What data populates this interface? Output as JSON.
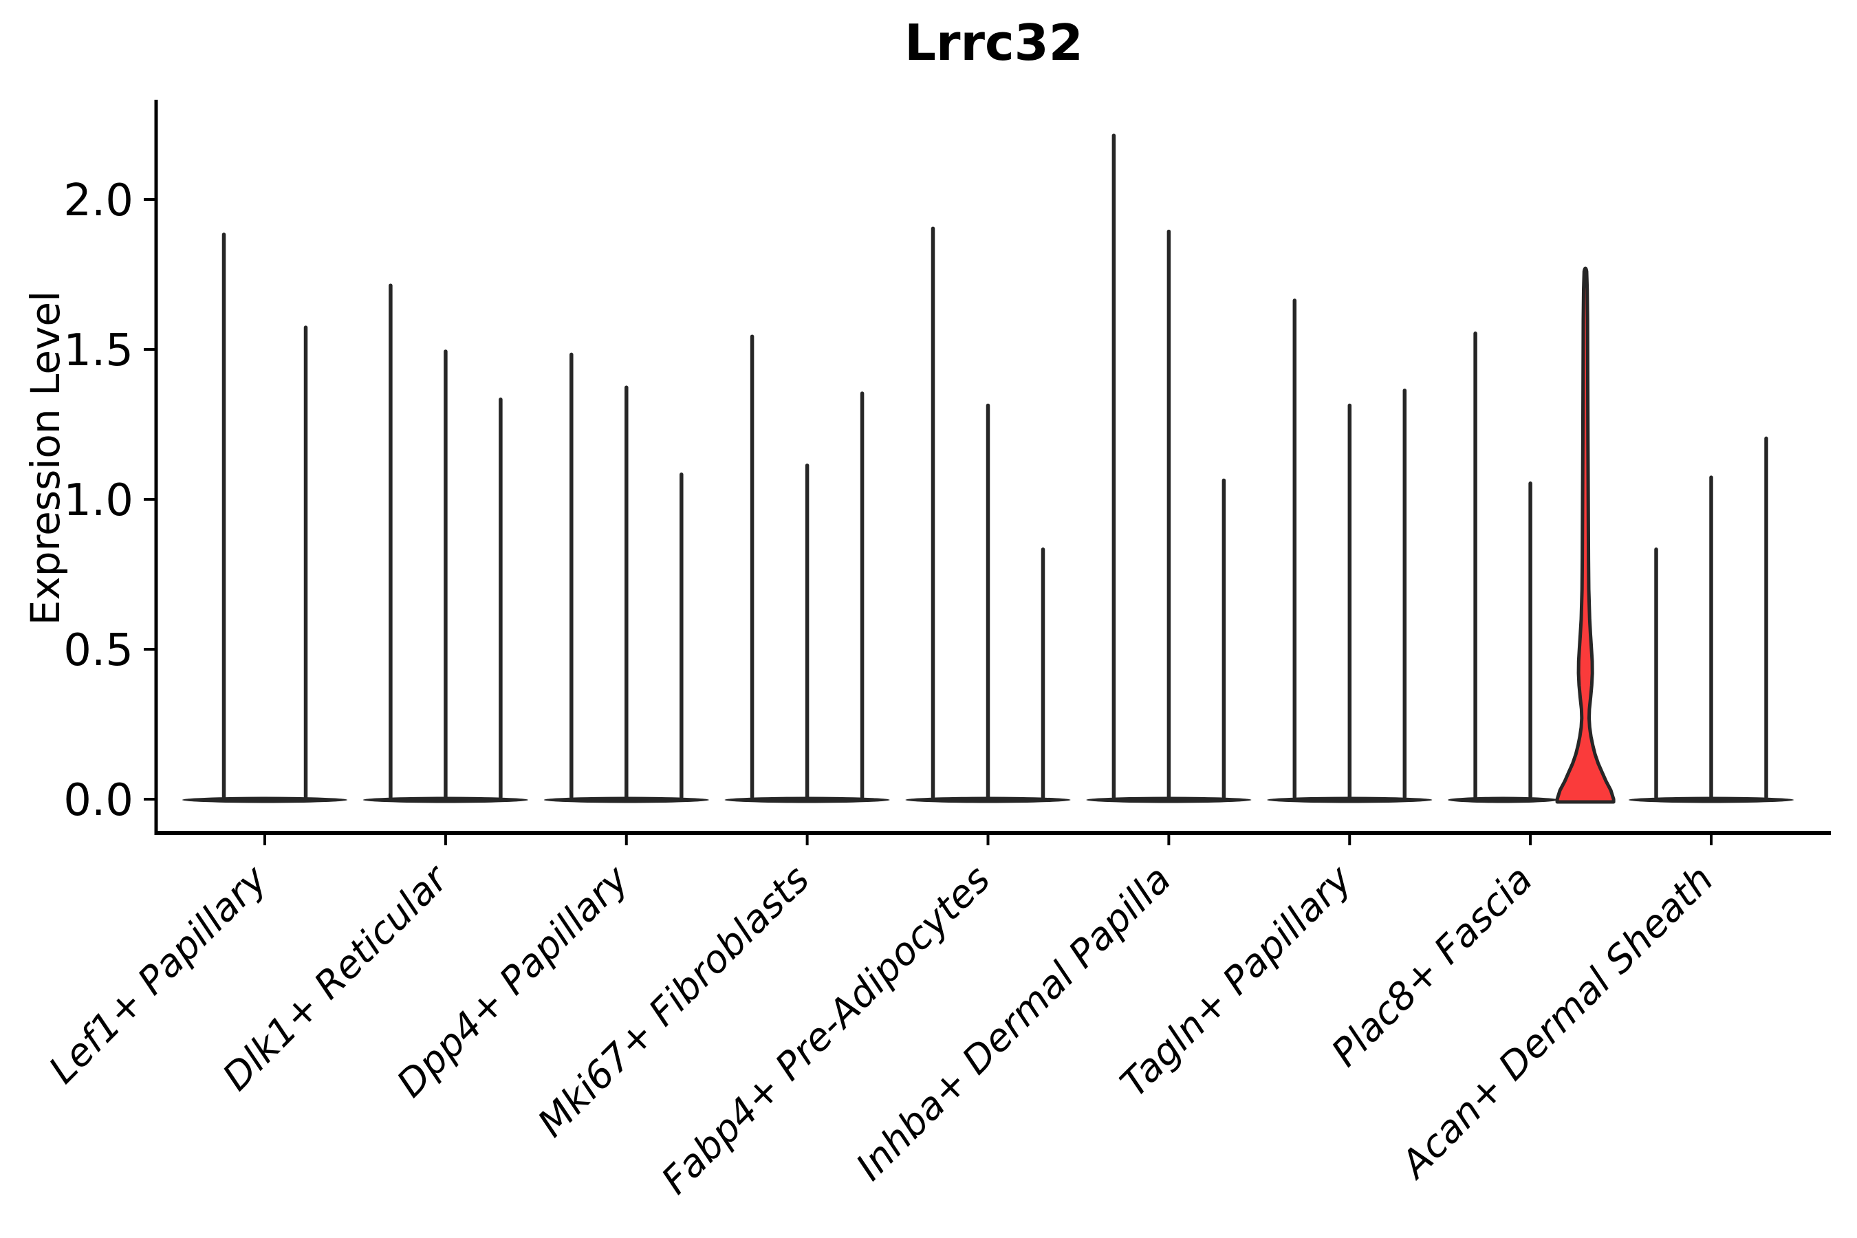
{
  "title": "Lrrc32",
  "y_axis": {
    "label": "Expression Level",
    "tick_labels": [
      "0.0",
      "0.5",
      "1.0",
      "1.5",
      "2.0"
    ],
    "tick_values": [
      0.0,
      0.5,
      1.0,
      1.5,
      2.0
    ]
  },
  "style": {
    "background": "#ffffff",
    "axis_color": "#000000",
    "violin_color": "#262626",
    "highlight_fill": "#fa3b3b",
    "text_color": "#000000"
  },
  "chart_data": {
    "type": "violin",
    "title": "Lrrc32",
    "ylabel": "Expression Level",
    "grid": false,
    "legend_position": "none",
    "ylim": [
      -0.11,
      2.33
    ],
    "yticks": [
      0.0,
      0.5,
      1.0,
      1.5,
      2.0
    ],
    "categories": [
      "Lef1+ Papillary",
      "Dlk1+ Reticular",
      "Dpp4+ Papillary",
      "Mki67+ Fibroblasts",
      "Fabp4+ Pre-Adipocytes",
      "Inhba+ Dermal Papilla",
      "Tagln+ Papillary",
      "Plac8+ Fascia",
      "Acan+ Dermal Sheath"
    ],
    "description": "Violin plot of Lrrc32 expression; nearly all violins collapse to thin spikes at 0 with long tails to their max value; one red-highlighted violin in Plac8+ Fascia shows visible density mass near 0-0.5.",
    "groups": [
      {
        "category": "Lef1+ Papillary",
        "violin_max_values": [
          1.89,
          1.58
        ],
        "highlight_index": null
      },
      {
        "category": "Dlk1+ Reticular",
        "violin_max_values": [
          1.72,
          1.5,
          1.34
        ],
        "highlight_index": null
      },
      {
        "category": "Dpp4+ Papillary",
        "violin_max_values": [
          1.49,
          1.38,
          1.09
        ],
        "highlight_index": null
      },
      {
        "category": "Mki67+ Fibroblasts",
        "violin_max_values": [
          1.55,
          1.12,
          1.36
        ],
        "highlight_index": null
      },
      {
        "category": "Fabp4+ Pre-Adipocytes",
        "violin_max_values": [
          1.91,
          1.32,
          0.84
        ],
        "highlight_index": null
      },
      {
        "category": "Inhba+ Dermal Papilla",
        "violin_max_values": [
          2.22,
          1.9,
          1.07
        ],
        "highlight_index": null
      },
      {
        "category": "Tagln+ Papillary",
        "violin_max_values": [
          1.67,
          1.32,
          1.37
        ],
        "highlight_index": null
      },
      {
        "category": "Plac8+ Fascia",
        "violin_max_values": [
          1.56,
          1.06,
          1.76
        ],
        "highlight_index": 2,
        "highlight_shape_profile": [
          [
            0.0,
            1.0
          ],
          [
            0.03,
            0.9
          ],
          [
            0.06,
            0.73
          ],
          [
            0.09,
            0.59
          ],
          [
            0.12,
            0.45
          ],
          [
            0.15,
            0.34
          ],
          [
            0.18,
            0.26
          ],
          [
            0.21,
            0.195
          ],
          [
            0.24,
            0.15
          ],
          [
            0.27,
            0.13
          ],
          [
            0.3,
            0.14
          ],
          [
            0.34,
            0.185
          ],
          [
            0.38,
            0.225
          ],
          [
            0.42,
            0.245
          ],
          [
            0.46,
            0.24
          ],
          [
            0.5,
            0.215
          ],
          [
            0.55,
            0.18
          ],
          [
            0.6,
            0.15
          ],
          [
            0.7,
            0.12
          ],
          [
            0.8,
            0.11
          ],
          [
            1.0,
            0.1
          ],
          [
            1.2,
            0.09
          ],
          [
            1.4,
            0.083
          ],
          [
            1.6,
            0.076
          ],
          [
            1.7,
            0.063
          ],
          [
            1.76,
            0.044
          ]
        ]
      },
      {
        "category": "Acan+ Dermal Sheath",
        "violin_max_values": [
          0.84,
          1.08,
          1.21
        ],
        "highlight_index": null
      }
    ]
  }
}
